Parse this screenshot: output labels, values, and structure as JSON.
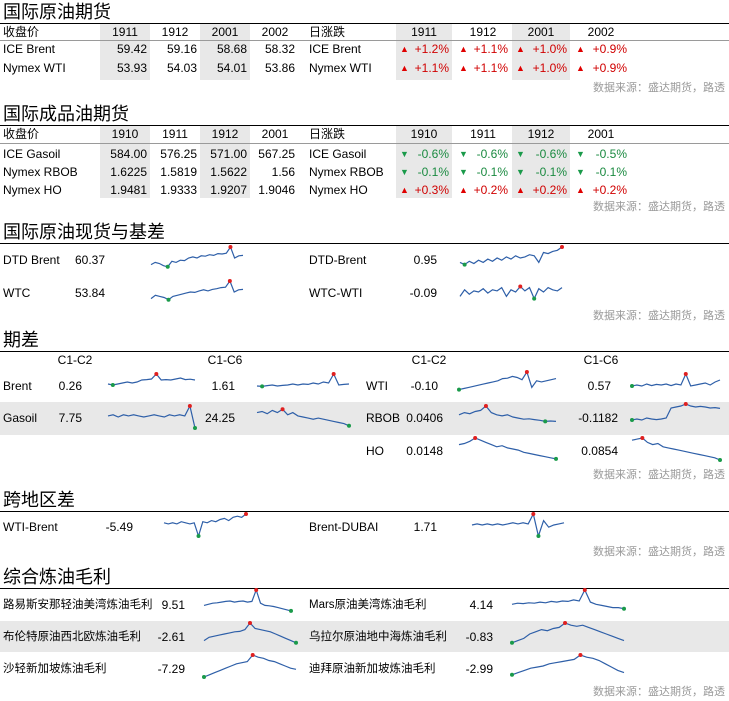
{
  "source_note": "数据来源：盛达期货，路透",
  "s1": {
    "title": "国际原油期货",
    "left_header": {
      "label": "收盘价",
      "cols": [
        "1911",
        "1912",
        "2001",
        "2002"
      ]
    },
    "right_header": {
      "label": "日涨跌",
      "cols": [
        "1911",
        "1912",
        "2001",
        "2002"
      ]
    },
    "rows": [
      {
        "name": "ICE Brent",
        "vals": [
          "59.42",
          "59.16",
          "58.68",
          "58.32"
        ],
        "chg_name": "ICE Brent",
        "chg": [
          "+1.2%",
          "+1.1%",
          "+1.0%",
          "+0.9%"
        ],
        "dir": [
          "up",
          "up",
          "up",
          "up"
        ]
      },
      {
        "name": "Nymex WTI",
        "vals": [
          "53.93",
          "54.03",
          "54.01",
          "53.86"
        ],
        "chg_name": "Nymex WTI",
        "chg": [
          "+1.1%",
          "+1.1%",
          "+1.0%",
          "+0.9%"
        ],
        "dir": [
          "up",
          "up",
          "up",
          "up"
        ]
      }
    ]
  },
  "s2": {
    "title": "国际成品油期货",
    "left_header": {
      "label": "收盘价",
      "cols": [
        "1910",
        "1911",
        "1912",
        "2001"
      ]
    },
    "right_header": {
      "label": "日涨跌",
      "cols": [
        "1910",
        "1911",
        "1912",
        "2001"
      ]
    },
    "rows": [
      {
        "name": "ICE Gasoil",
        "vals": [
          "584.00",
          "576.25",
          "571.00",
          "567.25"
        ],
        "chg_name": "ICE Gasoil",
        "chg": [
          "-0.6%",
          "-0.6%",
          "-0.6%",
          "-0.5%"
        ],
        "dir": [
          "dn",
          "dn",
          "dn",
          "dn"
        ]
      },
      {
        "name": "Nymex RBOB",
        "vals": [
          "1.6225",
          "1.5819",
          "1.5622",
          "1.56"
        ],
        "chg_name": "Nymex RBOB",
        "chg": [
          "-0.1%",
          "-0.1%",
          "-0.1%",
          "-0.1%"
        ],
        "dir": [
          "dn",
          "dn",
          "dn",
          "dn"
        ]
      },
      {
        "name": "Nymex HO",
        "vals": [
          "1.9481",
          "1.9333",
          "1.9207",
          "1.9046"
        ],
        "chg_name": "Nymex HO",
        "chg": [
          "+0.3%",
          "+0.2%",
          "+0.2%",
          "+0.2%"
        ],
        "dir": [
          "up",
          "up",
          "up",
          "up"
        ]
      }
    ]
  },
  "s3": {
    "title": "国际原油现货与基差",
    "items": [
      {
        "name": "DTD Brent",
        "value": "60.37"
      },
      {
        "name": "DTD-Brent",
        "value": "0.95"
      },
      {
        "name": "WTC",
        "value": "53.84"
      },
      {
        "name": "WTC-WTI",
        "value": "-0.09"
      }
    ]
  },
  "s4": {
    "title": "期差",
    "headers": [
      "C1-C2",
      "C1-C6",
      "C1-C2",
      "C1-C6"
    ],
    "rows": [
      {
        "l_name": "Brent",
        "l_c12": "0.26",
        "l_c16": "1.61",
        "r_name": "WTI",
        "r_c12": "-0.10",
        "r_c16": "0.57"
      },
      {
        "l_name": "Gasoil",
        "l_c12": "7.75",
        "l_c16": "24.25",
        "r_name": "RBOB",
        "r_c12": "0.0406",
        "r_c16": "-0.1182"
      },
      {
        "l_name": "",
        "l_c12": "",
        "l_c16": "",
        "r_name": "HO",
        "r_c12": "0.0148",
        "r_c16": "0.0854"
      }
    ]
  },
  "s5": {
    "title": "跨地区差",
    "items": [
      {
        "name": "WTI-Brent",
        "value": "-5.49"
      },
      {
        "name": "Brent-DUBAI",
        "value": "1.71"
      }
    ]
  },
  "s6": {
    "title": "综合炼油毛利",
    "items": [
      {
        "name": "路易斯安那轻油美湾炼油毛利",
        "value": "9.51"
      },
      {
        "name": "Mars原油美湾炼油毛利",
        "value": "4.14"
      },
      {
        "name": "布伦特原油西北欧炼油毛利",
        "value": "-2.61"
      },
      {
        "name": "乌拉尔原油地中海炼油毛利",
        "value": "-0.83"
      },
      {
        "name": "沙轻新加坡炼油毛利",
        "value": "-7.29"
      },
      {
        "name": "迪拜原油新加坡炼油毛利",
        "value": "-2.99"
      }
    ]
  },
  "colors": {
    "line": "#2e5fa8",
    "max_marker": "#e02020",
    "min_marker": "#1a9a4a",
    "shade": "#e8e8e8",
    "up": "#d00000",
    "down": "#1a8a40"
  }
}
